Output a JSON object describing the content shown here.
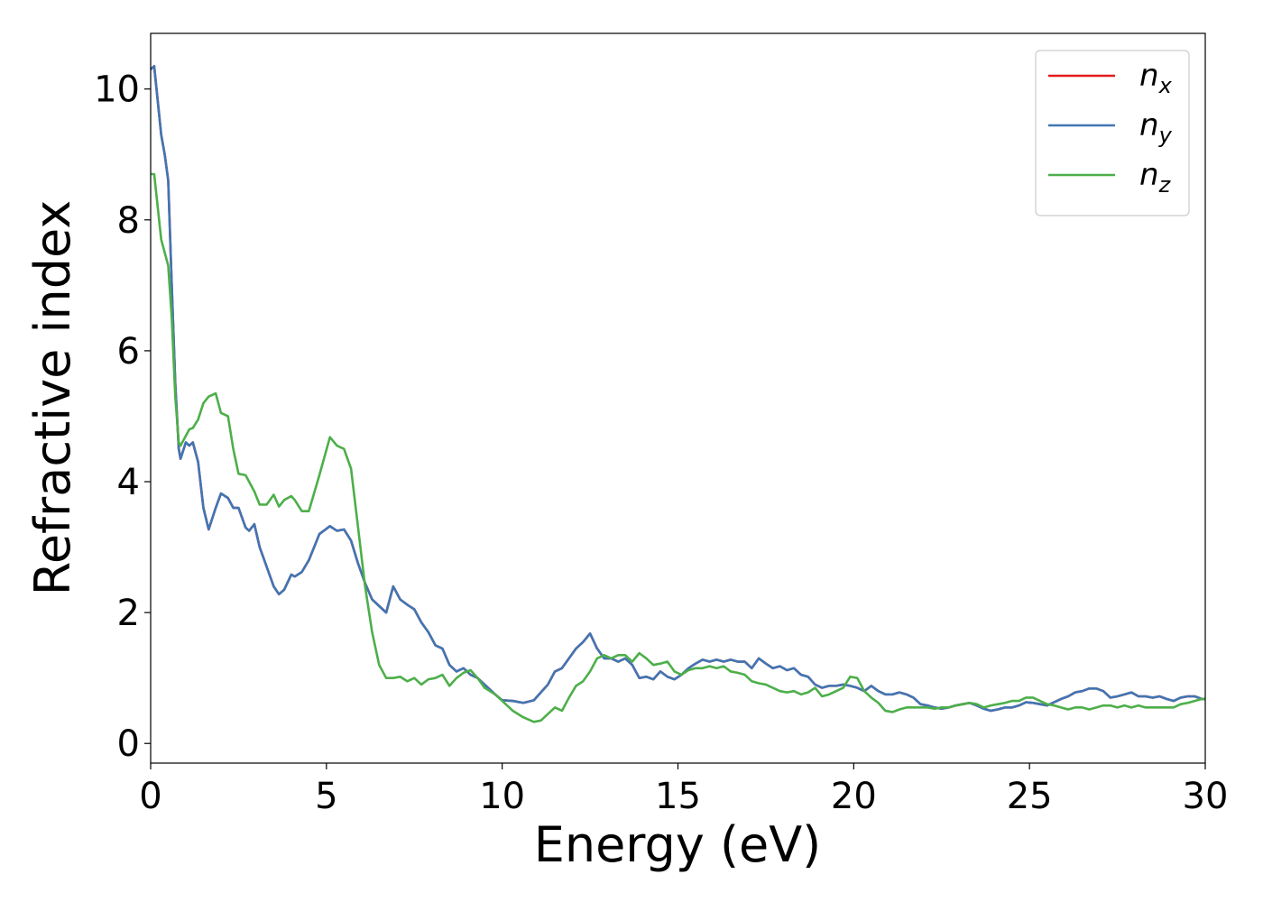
{
  "chart_data": {
    "type": "line",
    "xlabel": "Energy (eV)",
    "ylabel": "Refractive index",
    "x": [
      0,
      0.1,
      0.3,
      0.4,
      0.5,
      0.6,
      0.7,
      0.8,
      0.85,
      1.0,
      1.1,
      1.2,
      1.35,
      1.5,
      1.65,
      1.85,
      2.0,
      2.2,
      2.35,
      2.5,
      2.7,
      2.8,
      2.95,
      3.1,
      3.3,
      3.5,
      3.65,
      3.8,
      4.0,
      4.1,
      4.3,
      4.5,
      4.8,
      5.1,
      5.3,
      5.5,
      5.7,
      5.9,
      6.1,
      6.3,
      6.5,
      6.7,
      6.9,
      7.1,
      7.3,
      7.5,
      7.7,
      7.9,
      8.1,
      8.3,
      8.5,
      8.7,
      8.9,
      9.1,
      9.3,
      9.5,
      9.8,
      10.0,
      10.3,
      10.6,
      10.9,
      11.1,
      11.3,
      11.5,
      11.7,
      11.9,
      12.1,
      12.3,
      12.5,
      12.7,
      12.9,
      13.1,
      13.3,
      13.5,
      13.7,
      13.9,
      14.1,
      14.3,
      14.5,
      14.7,
      14.9,
      15.1,
      15.3,
      15.5,
      15.7,
      15.9,
      16.1,
      16.3,
      16.5,
      16.7,
      16.9,
      17.1,
      17.3,
      17.5,
      17.7,
      17.9,
      18.1,
      18.3,
      18.5,
      18.7,
      18.9,
      19.1,
      19.3,
      19.5,
      19.7,
      19.9,
      20.1,
      20.3,
      20.5,
      20.7,
      20.9,
      21.1,
      21.3,
      21.5,
      21.7,
      21.9,
      22.1,
      22.3,
      22.5,
      22.7,
      22.9,
      23.1,
      23.3,
      23.5,
      23.7,
      23.9,
      24.1,
      24.3,
      24.5,
      24.7,
      24.9,
      25.1,
      25.3,
      25.5,
      25.7,
      25.9,
      26.1,
      26.3,
      26.5,
      26.7,
      26.9,
      27.1,
      27.3,
      27.5,
      27.7,
      27.9,
      28.1,
      28.3,
      28.5,
      28.7,
      28.9,
      29.1,
      29.3,
      29.5,
      29.7,
      29.9,
      30
    ],
    "series": [
      {
        "name": "n_x",
        "color": "#e41a1c",
        "values": [
          10.3,
          10.35,
          9.3,
          9.0,
          8.6,
          7.0,
          5.5,
          4.5,
          4.35,
          4.6,
          4.55,
          4.6,
          4.3,
          3.6,
          3.27,
          3.6,
          3.82,
          3.75,
          3.6,
          3.6,
          3.3,
          3.25,
          3.35,
          3.0,
          2.7,
          2.4,
          2.28,
          2.35,
          2.58,
          2.55,
          2.62,
          2.8,
          3.2,
          3.32,
          3.25,
          3.27,
          3.1,
          2.75,
          2.45,
          2.2,
          2.1,
          2.0,
          2.4,
          2.2,
          2.12,
          2.05,
          1.85,
          1.7,
          1.5,
          1.45,
          1.2,
          1.1,
          1.15,
          1.05,
          1.0,
          0.9,
          0.75,
          0.66,
          0.65,
          0.62,
          0.66,
          0.78,
          0.9,
          1.1,
          1.15,
          1.3,
          1.45,
          1.55,
          1.68,
          1.45,
          1.3,
          1.3,
          1.25,
          1.3,
          1.2,
          1.0,
          1.02,
          0.98,
          1.1,
          1.02,
          0.98,
          1.05,
          1.15,
          1.22,
          1.28,
          1.25,
          1.28,
          1.25,
          1.28,
          1.25,
          1.25,
          1.15,
          1.3,
          1.22,
          1.15,
          1.18,
          1.12,
          1.15,
          1.05,
          1.02,
          0.9,
          0.85,
          0.88,
          0.88,
          0.9,
          0.88,
          0.85,
          0.8,
          0.88,
          0.8,
          0.75,
          0.75,
          0.78,
          0.75,
          0.7,
          0.6,
          0.58,
          0.55,
          0.53,
          0.55,
          0.58,
          0.6,
          0.62,
          0.58,
          0.53,
          0.5,
          0.52,
          0.55,
          0.55,
          0.58,
          0.63,
          0.62,
          0.6,
          0.58,
          0.63,
          0.68,
          0.72,
          0.78,
          0.8,
          0.84,
          0.84,
          0.8,
          0.7,
          0.72,
          0.75,
          0.78,
          0.72,
          0.72,
          0.7,
          0.72,
          0.68,
          0.65,
          0.7,
          0.72,
          0.72,
          0.68,
          0.68
        ]
      },
      {
        "name": "n_y",
        "color": "#3f76b4",
        "values": [
          10.3,
          10.35,
          9.3,
          9.0,
          8.6,
          7.0,
          5.5,
          4.5,
          4.35,
          4.6,
          4.55,
          4.6,
          4.3,
          3.6,
          3.27,
          3.6,
          3.82,
          3.75,
          3.6,
          3.6,
          3.3,
          3.25,
          3.35,
          3.0,
          2.7,
          2.4,
          2.28,
          2.35,
          2.58,
          2.55,
          2.62,
          2.8,
          3.2,
          3.32,
          3.25,
          3.27,
          3.1,
          2.75,
          2.45,
          2.2,
          2.1,
          2.0,
          2.4,
          2.2,
          2.12,
          2.05,
          1.85,
          1.7,
          1.5,
          1.45,
          1.2,
          1.1,
          1.15,
          1.05,
          1.0,
          0.9,
          0.75,
          0.66,
          0.65,
          0.62,
          0.66,
          0.78,
          0.9,
          1.1,
          1.15,
          1.3,
          1.45,
          1.55,
          1.68,
          1.45,
          1.3,
          1.3,
          1.25,
          1.3,
          1.2,
          1.0,
          1.02,
          0.98,
          1.1,
          1.02,
          0.98,
          1.05,
          1.15,
          1.22,
          1.28,
          1.25,
          1.28,
          1.25,
          1.28,
          1.25,
          1.25,
          1.15,
          1.3,
          1.22,
          1.15,
          1.18,
          1.12,
          1.15,
          1.05,
          1.02,
          0.9,
          0.85,
          0.88,
          0.88,
          0.9,
          0.88,
          0.85,
          0.8,
          0.88,
          0.8,
          0.75,
          0.75,
          0.78,
          0.75,
          0.7,
          0.6,
          0.58,
          0.55,
          0.53,
          0.55,
          0.58,
          0.6,
          0.62,
          0.58,
          0.53,
          0.5,
          0.52,
          0.55,
          0.55,
          0.58,
          0.63,
          0.62,
          0.6,
          0.58,
          0.63,
          0.68,
          0.72,
          0.78,
          0.8,
          0.84,
          0.84,
          0.8,
          0.7,
          0.72,
          0.75,
          0.78,
          0.72,
          0.72,
          0.7,
          0.72,
          0.68,
          0.65,
          0.7,
          0.72,
          0.72,
          0.68,
          0.68
        ]
      },
      {
        "name": "n_z",
        "color": "#4daf4a",
        "values": [
          8.7,
          8.7,
          7.7,
          7.5,
          7.3,
          6.5,
          5.3,
          4.6,
          4.55,
          4.7,
          4.8,
          4.82,
          4.95,
          5.2,
          5.3,
          5.35,
          5.05,
          5.0,
          4.5,
          4.12,
          4.1,
          4.0,
          3.85,
          3.65,
          3.65,
          3.8,
          3.62,
          3.72,
          3.78,
          3.72,
          3.55,
          3.55,
          4.1,
          4.68,
          4.55,
          4.5,
          4.2,
          3.3,
          2.4,
          1.7,
          1.2,
          1.0,
          1.0,
          1.02,
          0.95,
          1.0,
          0.9,
          0.98,
          1.0,
          1.05,
          0.88,
          1.0,
          1.08,
          1.12,
          1.0,
          0.85,
          0.75,
          0.65,
          0.5,
          0.4,
          0.33,
          0.35,
          0.45,
          0.55,
          0.5,
          0.7,
          0.88,
          0.95,
          1.1,
          1.3,
          1.35,
          1.3,
          1.35,
          1.35,
          1.25,
          1.38,
          1.3,
          1.2,
          1.22,
          1.25,
          1.1,
          1.05,
          1.12,
          1.15,
          1.15,
          1.18,
          1.15,
          1.18,
          1.1,
          1.08,
          1.05,
          0.95,
          0.92,
          0.9,
          0.85,
          0.8,
          0.78,
          0.8,
          0.75,
          0.78,
          0.85,
          0.72,
          0.75,
          0.8,
          0.85,
          1.02,
          1.0,
          0.8,
          0.7,
          0.62,
          0.5,
          0.48,
          0.52,
          0.55,
          0.55,
          0.55,
          0.55,
          0.53,
          0.55,
          0.55,
          0.58,
          0.6,
          0.62,
          0.6,
          0.55,
          0.58,
          0.6,
          0.62,
          0.65,
          0.65,
          0.7,
          0.7,
          0.65,
          0.6,
          0.58,
          0.55,
          0.52,
          0.55,
          0.55,
          0.52,
          0.55,
          0.58,
          0.58,
          0.55,
          0.58,
          0.55,
          0.58,
          0.55,
          0.55,
          0.55,
          0.55,
          0.55,
          0.6,
          0.62,
          0.65,
          0.68,
          0.68
        ]
      }
    ],
    "xlim": [
      0,
      30
    ],
    "xticks": [
      0,
      5,
      10,
      15,
      20,
      25,
      30
    ],
    "ylim": [
      -0.3,
      10.85
    ],
    "yticks": [
      0,
      2,
      4,
      6,
      8,
      10
    ],
    "legend": "upper right"
  }
}
